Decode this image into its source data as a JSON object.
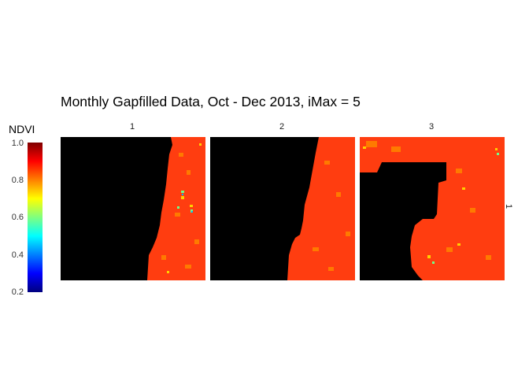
{
  "chart_data": {
    "type": "heatmap",
    "title": "Monthly Gapfilled Data, Oct - Dec 2013, iMax = 5",
    "legend": {
      "title": "NDVI",
      "range": [
        0.2,
        1.0
      ],
      "ticks": [
        "1.0",
        "0.8",
        "0.6",
        "0.4",
        "0.2"
      ],
      "colormap": [
        "#00007f",
        "#0000ff",
        "#007fff",
        "#00ffff",
        "#7fff7f",
        "#ffff00",
        "#ff7f00",
        "#ff0000",
        "#7f0000"
      ]
    },
    "facets": {
      "columns": [
        "1",
        "2",
        "3"
      ],
      "rows": [
        "1"
      ]
    },
    "panels": [
      {
        "panel": "1",
        "missing_color": "#000000",
        "dominant_ndvi": 0.85
      },
      {
        "panel": "2",
        "missing_color": "#000000",
        "dominant_ndvi": 0.86
      },
      {
        "panel": "3",
        "missing_color": "#000000",
        "dominant_ndvi": 0.85
      }
    ]
  }
}
